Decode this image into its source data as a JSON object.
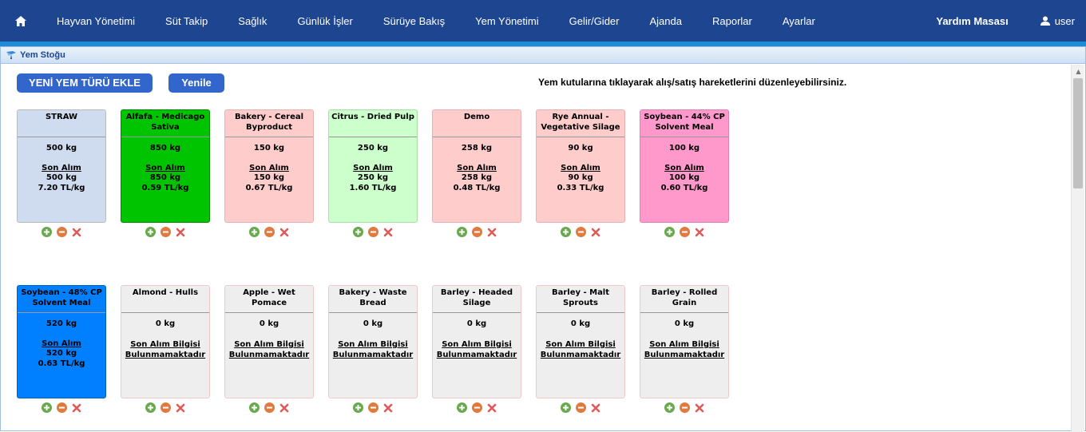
{
  "nav": {
    "items": [
      "Hayvan Yönetimi",
      "Süt Takip",
      "Sağlık",
      "Günlük İşler",
      "Sürüye Bakış",
      "Yem Yönetimi",
      "Gelir/Gider",
      "Ajanda",
      "Raporlar",
      "Ayarlar"
    ],
    "help": "Yardım Masası",
    "user": "user"
  },
  "panel": {
    "title": "Yem Stoğu"
  },
  "toolbar": {
    "add_label": "YENİ YEM TÜRÜ EKLE",
    "refresh_label": "Yenile",
    "hint": "Yem kutularına tıklayarak alış/satış hareketlerini düzenleyebilirsiniz."
  },
  "colors": {
    "nav_bg": "#1d4590",
    "accent": "#1f8ad6",
    "button": "#3366cc"
  },
  "cards": [
    {
      "name": "STRAW",
      "qty": "500 kg",
      "label": "Son Alım",
      "last_qty": "500 kg",
      "price": "7.20 TL/kg",
      "bg": "#cfdcf0",
      "name_bg": "#cfdcf0",
      "border": "#bbbbbb"
    },
    {
      "name": "Alfafa - Medicago Sativa",
      "qty": "850 kg",
      "label": "Son Alım",
      "last_qty": "850 kg",
      "price": "0.59 TL/kg",
      "bg": "#00c400",
      "name_bg": "#00c400",
      "border": "#008800"
    },
    {
      "name": "Bakery - Cereal Byproduct",
      "qty": "150 kg",
      "label": "Son Alım",
      "last_qty": "150 kg",
      "price": "0.67 TL/kg",
      "bg": "#ffcccc",
      "name_bg": "#ffcccc",
      "border": "#e8b0b0"
    },
    {
      "name": "Citrus - Dried Pulp",
      "qty": "250 kg",
      "label": "Son Alım",
      "last_qty": "250 kg",
      "price": "1.60 TL/kg",
      "bg": "#ccffcc",
      "name_bg": "#ccffcc",
      "border": "#a8dca8"
    },
    {
      "name": "Demo",
      "qty": "258 kg",
      "label": "Son Alım",
      "last_qty": "258 kg",
      "price": "0.48 TL/kg",
      "bg": "#ffcccc",
      "name_bg": "#ffcccc",
      "border": "#e8b0b0"
    },
    {
      "name": "Rye Annual - Vegetative Silage",
      "qty": "90 kg",
      "label": "Son Alım",
      "last_qty": "90 kg",
      "price": "0.33 TL/kg",
      "bg": "#ffcccc",
      "name_bg": "#ffcccc",
      "border": "#e8b0b0"
    },
    {
      "name": "Soybean - 44% CP Solvent Meal",
      "qty": "100 kg",
      "label": "Son Alım",
      "last_qty": "100 kg",
      "price": "0.60 TL/kg",
      "bg": "#ff99cc",
      "name_bg": "#ff99cc",
      "border": "#e080b0"
    },
    {
      "name": "Soybean - 48% CP Solvent Meal",
      "qty": "520 kg",
      "label": "Son Alım",
      "last_qty": "520 kg",
      "price": "0.63 TL/kg",
      "bg": "#0080ff",
      "name_bg": "#0080ff",
      "border": "#0060c0"
    },
    {
      "name": "Almond - Hulls",
      "qty": "0 kg",
      "none": "Son Alım Bilgisi Bulunmamaktadır",
      "bg": "#eeeeee",
      "name_bg": "#eeeeee",
      "border": "#f0c8c8"
    },
    {
      "name": "Apple - Wet Pomace",
      "qty": "0 kg",
      "none": "Son Alım Bilgisi Bulunmamaktadır",
      "bg": "#eeeeee",
      "name_bg": "#eeeeee",
      "border": "#f0c8c8"
    },
    {
      "name": "Bakery - Waste Bread",
      "qty": "0 kg",
      "none": "Son Alım Bilgisi Bulunmamaktadır",
      "bg": "#eeeeee",
      "name_bg": "#eeeeee",
      "border": "#f0c8c8"
    },
    {
      "name": "Barley - Headed Silage",
      "qty": "0 kg",
      "none": "Son Alım Bilgisi Bulunmamaktadır",
      "bg": "#eeeeee",
      "name_bg": "#eeeeee",
      "border": "#f0c8c8"
    },
    {
      "name": "Barley - Malt Sprouts",
      "qty": "0 kg",
      "none": "Son Alım Bilgisi Bulunmamaktadır",
      "bg": "#eeeeee",
      "name_bg": "#eeeeee",
      "border": "#f0c8c8"
    },
    {
      "name": "Barley - Rolled Grain",
      "qty": "0 kg",
      "none": "Son Alım Bilgisi Bulunmamaktadır",
      "bg": "#eeeeee",
      "name_bg": "#eeeeee",
      "border": "#f0c8c8"
    }
  ]
}
